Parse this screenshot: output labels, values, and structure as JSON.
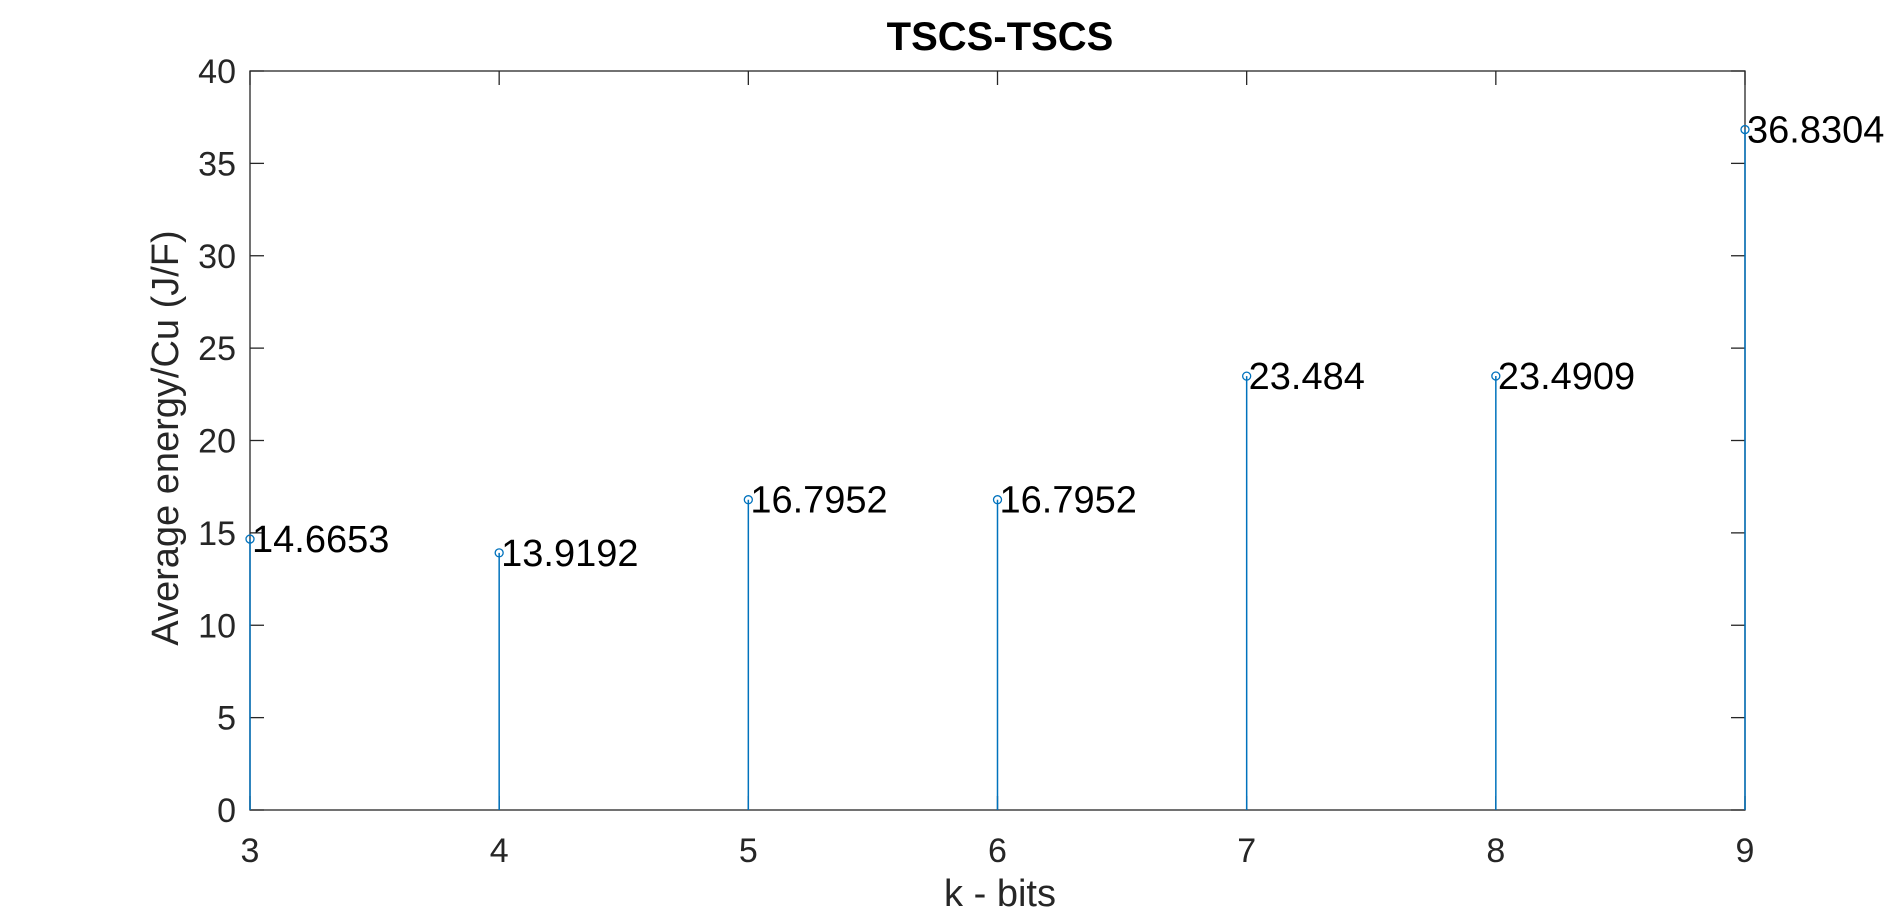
{
  "chart_data": {
    "type": "stem",
    "title": "TSCS-TSCS",
    "xlabel": "k - bits",
    "ylabel": "Average energy/Cu (J/F)",
    "x": [
      3,
      4,
      5,
      6,
      7,
      8,
      9
    ],
    "values": [
      14.6653,
      13.9192,
      16.7952,
      16.7952,
      23.484,
      23.4909,
      36.8304
    ],
    "data_labels": [
      "14.6653",
      "13.9192",
      "16.7952",
      "16.7952",
      "23.484",
      "23.4909",
      "36.8304"
    ],
    "xlim": [
      3,
      9
    ],
    "ylim": [
      0,
      40
    ],
    "xticks": [
      3,
      4,
      5,
      6,
      7,
      8,
      9
    ],
    "yticks": [
      0,
      5,
      10,
      15,
      20,
      25,
      30,
      35,
      40
    ],
    "grid": false,
    "legend": "none",
    "series_color": "#0072BD",
    "axis_color": "#262626"
  }
}
